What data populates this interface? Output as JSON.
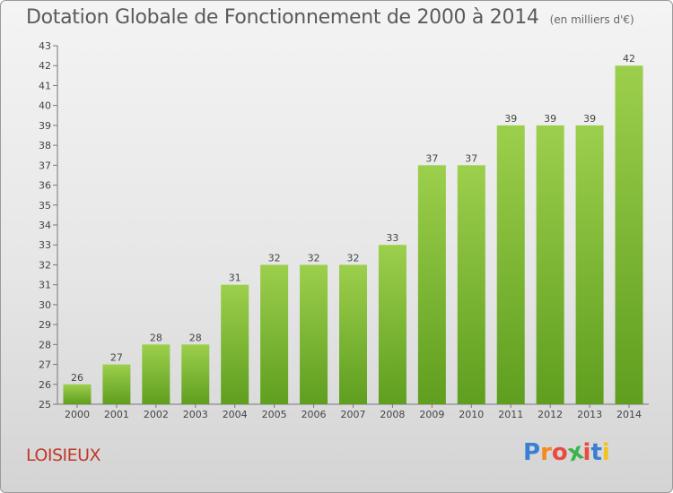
{
  "title": "Dotation Globale de Fonctionnement de 2000 à 2014",
  "subtitle": "(en milliers d'€)",
  "commune": "LOISIEUX",
  "brand": {
    "letters": [
      "P",
      "r",
      "o",
      "x",
      "i",
      "t",
      "i"
    ],
    "colors": [
      "#3a7fd5",
      "#f28a1c",
      "#e84c3d",
      "#3ab54a",
      "#e84c3d",
      "#3a7fd5",
      "#f2c31c"
    ]
  },
  "colors": {
    "bar_light": "#9ccf4c",
    "bar_dark": "#5f9e1f",
    "title": "#5a5a5a",
    "commune": "#c0392b"
  },
  "chart_data": {
    "type": "bar",
    "categories": [
      "2000",
      "2001",
      "2002",
      "2003",
      "2004",
      "2005",
      "2006",
      "2007",
      "2008",
      "2009",
      "2010",
      "2011",
      "2012",
      "2013",
      "2014"
    ],
    "values": [
      26,
      27,
      28,
      28,
      31,
      32,
      32,
      32,
      33,
      37,
      37,
      39,
      39,
      39,
      42
    ],
    "ylim": [
      25,
      43
    ],
    "yticks": [
      25,
      26,
      27,
      28,
      29,
      30,
      31,
      32,
      33,
      34,
      35,
      36,
      37,
      38,
      39,
      40,
      41,
      42,
      43
    ],
    "grid": false,
    "data_labels": true
  }
}
